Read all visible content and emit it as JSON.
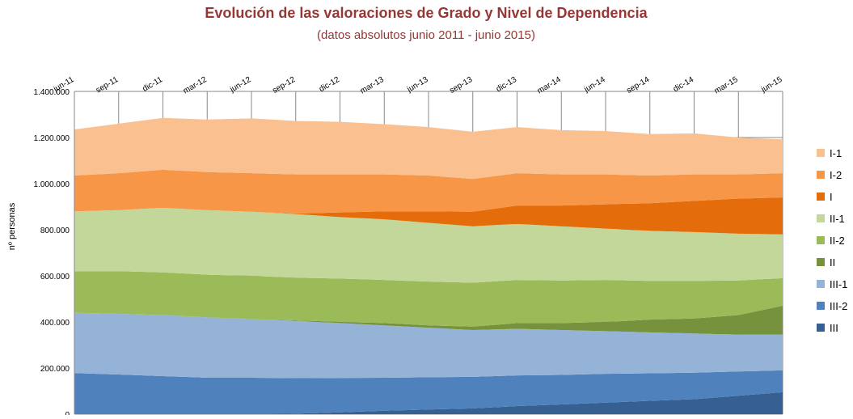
{
  "chart_data": {
    "type": "stacked-area",
    "title": "Evolución de las valoraciones de Grado y Nivel de Dependencia",
    "subtitle": "(datos absolutos junio 2011 - junio 2015)",
    "y_label": "nº personas",
    "categories": [
      "jun-11",
      "sep-11",
      "dic-11",
      "mar-12",
      "jun-12",
      "sep-12",
      "dic-12",
      "mar-13",
      "jun-13",
      "sep-13",
      "dic-13",
      "mar-14",
      "jun-14",
      "sep-14",
      "dic-14",
      "mar-15",
      "jun-15"
    ],
    "ylim": [
      0,
      1400000
    ],
    "yticks": [
      0,
      {
        "value": 200000,
        "label": "200.000"
      },
      {
        "value": 400000,
        "label": "400.000"
      },
      {
        "value": 600000,
        "label": "600.000"
      },
      {
        "value": 800000,
        "label": "800.000"
      },
      {
        "value": 1000000,
        "label": "1.000.000"
      },
      {
        "value": 1200000,
        "label": "1.200.000"
      },
      {
        "value": 1400000,
        "label": "1.400.000"
      }
    ],
    "grid": true,
    "legend": "right",
    "series": [
      {
        "name": "III",
        "color": "#366092",
        "values": [
          0,
          0,
          0,
          0,
          0,
          2000,
          8000,
          15000,
          20000,
          25000,
          35000,
          42000,
          50000,
          58000,
          65000,
          80000,
          95000
        ]
      },
      {
        "name": "III-2",
        "color": "#4f81bd",
        "values": [
          178000,
          172000,
          165000,
          158000,
          158000,
          154000,
          149000,
          143000,
          140000,
          137000,
          133000,
          128000,
          125000,
          119000,
          115000,
          105000,
          95000
        ]
      },
      {
        "name": "III-1",
        "color": "#95b3d7",
        "values": [
          262000,
          263000,
          265000,
          262000,
          254000,
          249000,
          238000,
          227000,
          215000,
          203000,
          202000,
          195000,
          185000,
          178000,
          170000,
          160000,
          155000
        ]
      },
      {
        "name": "II",
        "color": "#76923c",
        "values": [
          0,
          0,
          0,
          0,
          0,
          2000,
          5000,
          10000,
          10000,
          15000,
          25000,
          30000,
          40000,
          55000,
          65000,
          85000,
          125000
        ]
      },
      {
        "name": "II-2",
        "color": "#9bbb59",
        "values": [
          180000,
          185000,
          185000,
          185000,
          188000,
          185000,
          188000,
          187000,
          190000,
          190000,
          187000,
          185000,
          182000,
          168000,
          163000,
          150000,
          120000
        ]
      },
      {
        "name": "II-1",
        "color": "#c4d79b",
        "values": [
          260000,
          265000,
          280000,
          280000,
          278000,
          276000,
          267000,
          263000,
          255000,
          245000,
          243000,
          235000,
          223000,
          217000,
          212000,
          203000,
          190000
        ]
      },
      {
        "name": "I",
        "color": "#e46c0a",
        "values": [
          0,
          0,
          0,
          0,
          0,
          2000,
          20000,
          35000,
          50000,
          63000,
          80000,
          90000,
          105000,
          120000,
          135000,
          152000,
          160000
        ]
      },
      {
        "name": "I-2",
        "color": "#f79646",
        "values": [
          155000,
          160000,
          165000,
          165000,
          167000,
          170000,
          165000,
          160000,
          155000,
          142000,
          140000,
          135000,
          130000,
          120000,
          115000,
          105000,
          105000
        ]
      },
      {
        "name": "I-1",
        "color": "#fac090",
        "values": [
          200000,
          215000,
          225000,
          228000,
          238000,
          232000,
          228000,
          218000,
          210000,
          205000,
          200000,
          192000,
          188000,
          180000,
          178000,
          160000,
          147000
        ]
      }
    ]
  }
}
